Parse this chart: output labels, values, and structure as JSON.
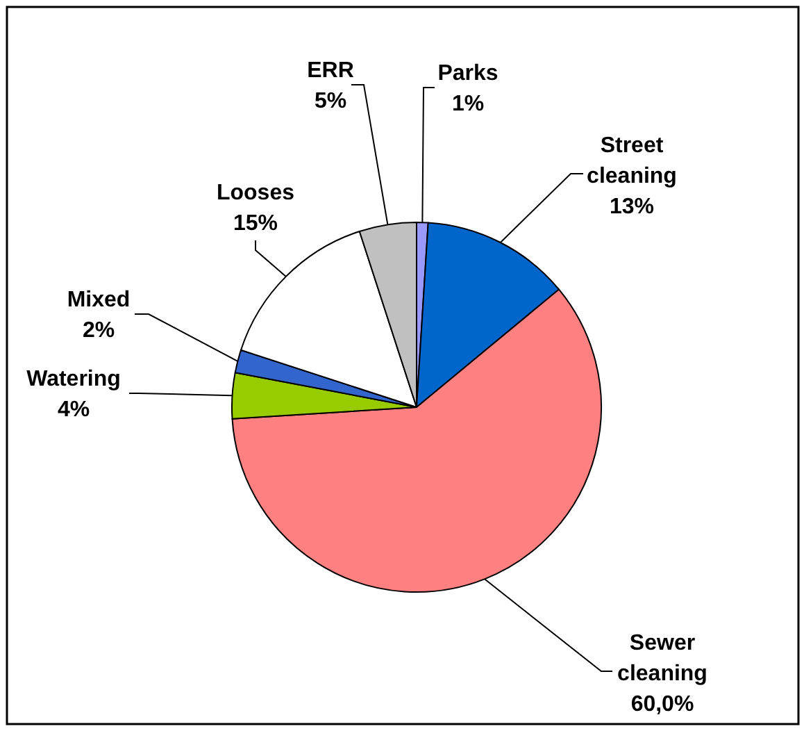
{
  "chart_data": {
    "type": "pie",
    "categories": [
      "Parks",
      "Street cleaning",
      "Sewer cleaning",
      "Watering",
      "Mixed",
      "Looses",
      "ERR"
    ],
    "values": [
      1,
      13,
      60.0,
      4,
      2,
      15,
      5
    ],
    "colors": [
      "#9999ff",
      "#0066cc",
      "#ff8080",
      "#99cc00",
      "#3366cc",
      "#ffffff",
      "#c0c0c0"
    ],
    "value_labels": [
      "1%",
      "13%",
      "60,0%",
      "4%",
      "2%",
      "15%",
      "5%"
    ]
  }
}
